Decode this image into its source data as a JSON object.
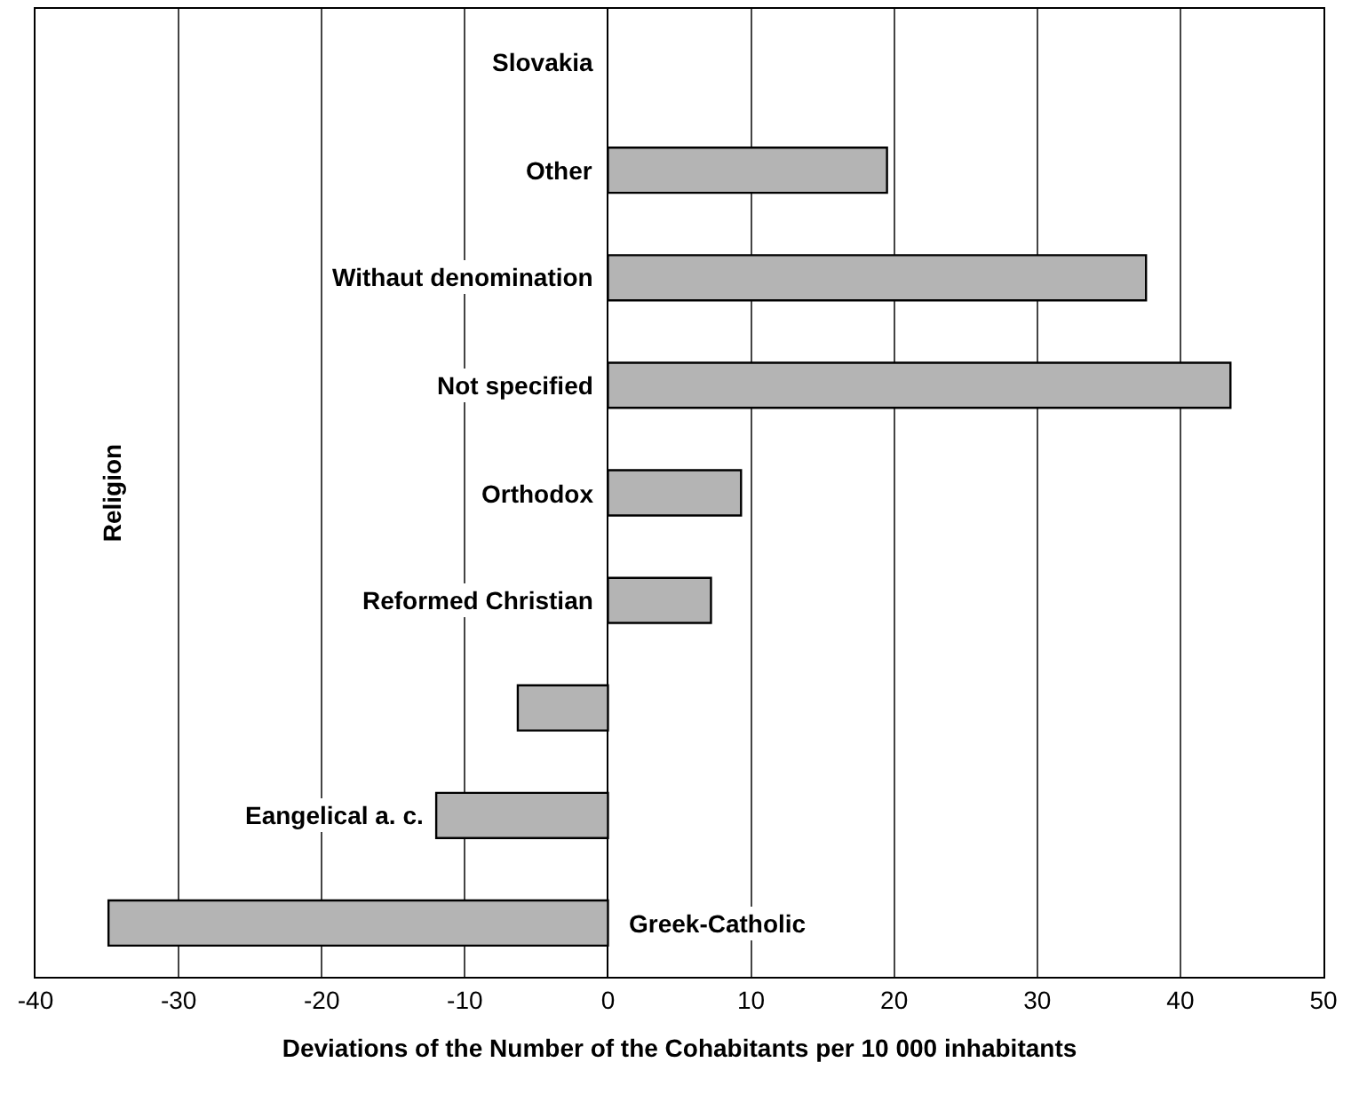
{
  "chart_data": {
    "type": "bar",
    "orientation": "horizontal",
    "categories": [
      "Slovakia",
      "Other",
      "Withaut denomination",
      "Not specified",
      "Orthodox",
      "Reformed Christian",
      null,
      "Eangelical a. c.",
      "Greek-Catholic"
    ],
    "values": [
      null,
      19.5,
      37.6,
      43.5,
      9.3,
      7.2,
      -6.3,
      -12,
      -34.9
    ],
    "color": "#b4b4b4",
    "xlabel": "Deviations of the Number of the Cohabitants per 10 000 inhabitants",
    "ylabel": "Religion",
    "xlim": [
      -40,
      50
    ],
    "xticks": [
      -40,
      -30,
      -20,
      -10,
      0,
      10,
      20,
      30,
      40,
      50
    ],
    "grid": "x",
    "legend": false
  }
}
